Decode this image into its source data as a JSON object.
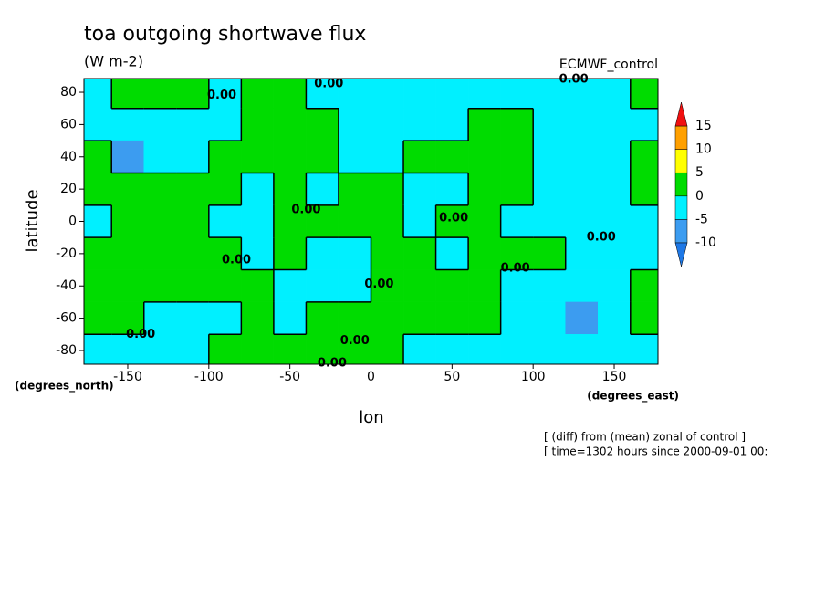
{
  "chart_data": {
    "type": "contour",
    "title": "toa outgoing shortwave flux",
    "subtitle": "(W m-2)",
    "source_label": "ECMWF_control",
    "x_label": "lon",
    "y_label": "latitude",
    "x_unit_label": "(degrees_east)",
    "y_unit_label": "(degrees_north)",
    "notes": [
      "[ (diff) from (mean) zonal of control ]",
      "[ time=1302 hours since 2000-09-01 00:"
    ],
    "x": [
      -170,
      -150,
      -130,
      -110,
      -90,
      -70,
      -50,
      -30,
      -10,
      10,
      30,
      50,
      70,
      90,
      110,
      130,
      150,
      170
    ],
    "y": [
      80,
      60,
      40,
      20,
      0,
      -20,
      -40,
      -60,
      -80
    ],
    "z": [
      [
        -2,
        2,
        2,
        2,
        -2,
        2,
        2,
        -2,
        -2,
        -2,
        -2,
        -2,
        -2,
        -2,
        -2,
        -2,
        -2,
        2
      ],
      [
        -3,
        -4,
        -4,
        -3,
        -2,
        2,
        2,
        2,
        -2,
        -2,
        -2,
        -2,
        2,
        2,
        -2,
        -3,
        -3,
        -2
      ],
      [
        2,
        -7,
        -3,
        -2,
        2,
        2,
        2,
        2,
        -2,
        -2,
        2,
        2,
        2,
        2,
        -2,
        -2,
        -2,
        2
      ],
      [
        2,
        2,
        2,
        2,
        2,
        -2,
        2,
        -2,
        2,
        2,
        -2,
        -2,
        2,
        2,
        -2,
        -3,
        -2,
        2
      ],
      [
        -2,
        2,
        2,
        2,
        -2,
        -2,
        2,
        2,
        2,
        2,
        -2,
        2,
        2,
        -2,
        -2,
        -2,
        -3,
        -2
      ],
      [
        2,
        2,
        2,
        2,
        2,
        -2,
        2,
        -2,
        -2,
        2,
        2,
        -2,
        2,
        2,
        2,
        -2,
        -2,
        -2
      ],
      [
        2,
        2,
        2,
        2,
        2,
        2,
        -2,
        -2,
        -2,
        2,
        2,
        2,
        2,
        -2,
        -2,
        -2,
        -2,
        2
      ],
      [
        2,
        2,
        -2,
        -2,
        -2,
        2,
        -2,
        2,
        2,
        2,
        2,
        2,
        2,
        -2,
        -2,
        -7,
        -2,
        2
      ],
      [
        -2,
        -2,
        -2,
        -2,
        2,
        2,
        2,
        2,
        2,
        2,
        -2,
        -2,
        -2,
        -2,
        -2,
        -2,
        -2,
        -2
      ]
    ],
    "levels": [
      -10,
      -5,
      0,
      5,
      10,
      15
    ],
    "colors": [
      "#1e78e6",
      "#3c9cf0",
      "#00f0ff",
      "#00dc00",
      "#ffff00",
      "#ffa000",
      "#f01010"
    ],
    "xlim": [
      -177,
      177
    ],
    "ylim": [
      -88.5,
      88.5
    ],
    "xticks": [
      -150,
      -100,
      -50,
      0,
      50,
      100,
      150
    ],
    "yticks": [
      -80,
      -60,
      -40,
      -20,
      0,
      20,
      40,
      60,
      80
    ],
    "annotations": [
      {
        "text": "0.00",
        "x": -92,
        "y": 78
      },
      {
        "text": "0.00",
        "x": -26,
        "y": 85
      },
      {
        "text": "0.00",
        "x": 125,
        "y": 88
      },
      {
        "text": "0.00",
        "x": -40,
        "y": 7
      },
      {
        "text": "0.00",
        "x": 51,
        "y": 2
      },
      {
        "text": "0.00",
        "x": 142,
        "y": -10
      },
      {
        "text": "0.00",
        "x": 89,
        "y": -29
      },
      {
        "text": "0.00",
        "x": 5,
        "y": -39
      },
      {
        "text": "0.00",
        "x": -83,
        "y": -24
      },
      {
        "text": "0.00",
        "x": -142,
        "y": -70
      },
      {
        "text": "0.00",
        "x": -10,
        "y": -74
      },
      {
        "text": "0.00",
        "x": -24,
        "y": -88
      }
    ]
  }
}
